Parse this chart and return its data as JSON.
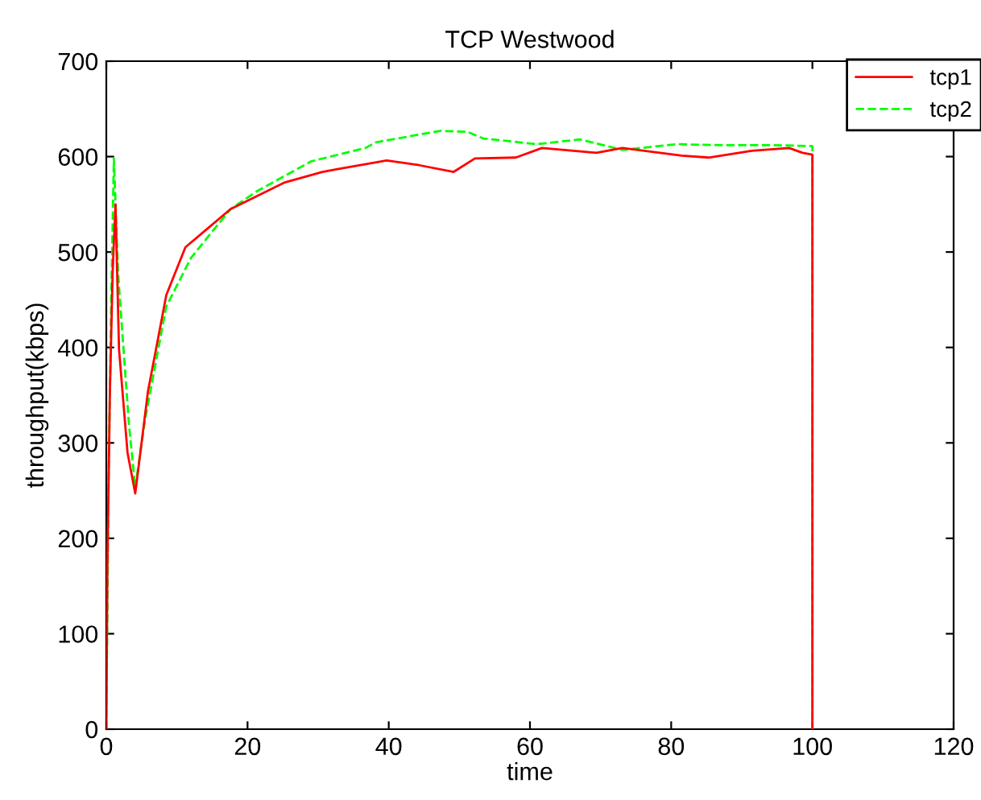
{
  "chart_data": {
    "type": "line",
    "title": "TCP Westwood",
    "xlabel": "time",
    "ylabel": "throughput(kbps)",
    "xlim": [
      0,
      120
    ],
    "xticks": [
      0,
      20,
      40,
      60,
      80,
      100,
      120
    ],
    "ylim": [
      0,
      700
    ],
    "yticks": [
      0,
      100,
      200,
      300,
      400,
      500,
      600,
      700
    ],
    "grid": false,
    "legend": "top right",
    "marker": "none",
    "series": [
      {
        "name": "tcp1",
        "color": "#ff0000",
        "line_style": "solid",
        "x": [
          0,
          0.15,
          0.5,
          0.9,
          1.3,
          1.8,
          3.0,
          4.1,
          5.9,
          8.5,
          11.2,
          17.6,
          25.3,
          30.6,
          32.9,
          39.7,
          44.3,
          49.2,
          52.2,
          58,
          61.7,
          69.4,
          73.1,
          81.5,
          85.3,
          91.4,
          96.7,
          98.6,
          100,
          100
        ],
        "values": [
          0,
          169,
          350,
          480,
          550,
          398,
          290,
          247,
          354,
          455,
          505,
          545,
          573,
          584,
          587,
          596,
          591,
          584,
          598,
          599,
          609,
          604,
          609,
          601,
          599,
          606,
          609,
          604,
          602,
          0
        ]
      },
      {
        "name": "tcp2",
        "color": "#00ff00",
        "line_style": "dashed",
        "x": [
          0,
          0.3,
          0.7,
          1.07,
          1.67,
          3.2,
          4.1,
          5.5,
          8.5,
          12,
          17.6,
          21.4,
          29,
          36.7,
          38.2,
          47.3,
          51.1,
          53.4,
          61,
          67.1,
          73.1,
          80.8,
          86.8,
          94.4,
          100,
          100
        ],
        "values": [
          0,
          250,
          450,
          598,
          477,
          320,
          253,
          325,
          443,
          494,
          545,
          564,
          595,
          609,
          615,
          627,
          626,
          619,
          613,
          618,
          607,
          613,
          612,
          612,
          611,
          0
        ]
      }
    ]
  }
}
